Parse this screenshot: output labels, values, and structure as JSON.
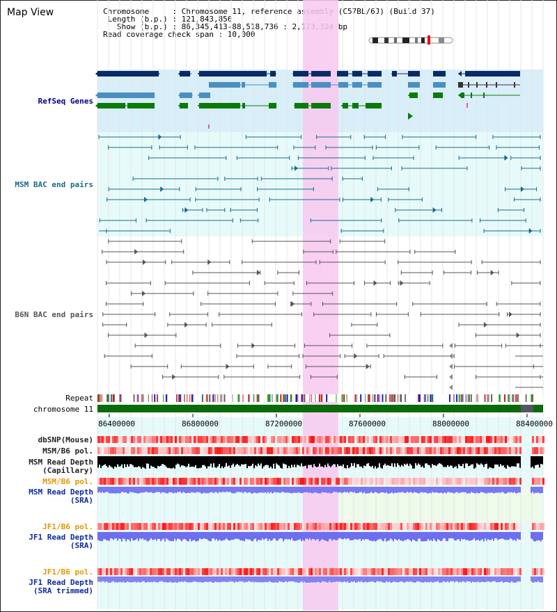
{
  "header": {
    "title": "Map View",
    "lines": [
      "Chromosome     : Chromosome 11, reference assembly (C57BL/6J) (Build 37)",
      " Length (b.p.) : 121,843,856",
      "   Show (b.p.) : 86,345,413-88,518,736 : 2,173,324 bp",
      "Read coverage check span : 10,000"
    ]
  },
  "tracks": {
    "refseq": "RefSeq Genes",
    "msm_bac": "MSM BAC end pairs",
    "b6n_bac": "B6N BAC end pairs",
    "repeat": "Repeat",
    "chromosome": "chromosome 11",
    "dbsnp": "dbSNP(Mouse)",
    "msm_pol1": "MSM/B6 pol.",
    "msm_depth_cap": "MSM Read Depth",
    "msm_depth_cap_sub": "(Capillary)",
    "msm_pol2": "MSM/B6 pol.",
    "msm_depth_sra": "MSM Read Depth",
    "msm_depth_sra_sub": "(SRA)",
    "jf1_pol1": "JF1/B6 pol.",
    "jf1_depth": "JF1 Read Depth",
    "jf1_depth_sub": "(SRA)",
    "jf1_pol2": "JF1/B6 pol.",
    "jf1_depth_trim": "JF1 Read Depth",
    "jf1_depth_trim_sub": "(SRA trimmed)"
  },
  "axis": {
    "ticks": [
      "86400000",
      "86800000",
      "87200000",
      "87600000",
      "88000000",
      "88400000"
    ]
  },
  "colors": {
    "refseq_dark": "#0a2a66",
    "refseq_light": "#4a8fbf",
    "refseq_green": "#0a7a0a",
    "bac_msm": "#1a6a8a",
    "bac_b6n": "#555555",
    "highlight": "#f8c8ee",
    "depth": "#1a1aff",
    "pol_orange": "#e69500",
    "label_blue": "#00008b"
  }
}
